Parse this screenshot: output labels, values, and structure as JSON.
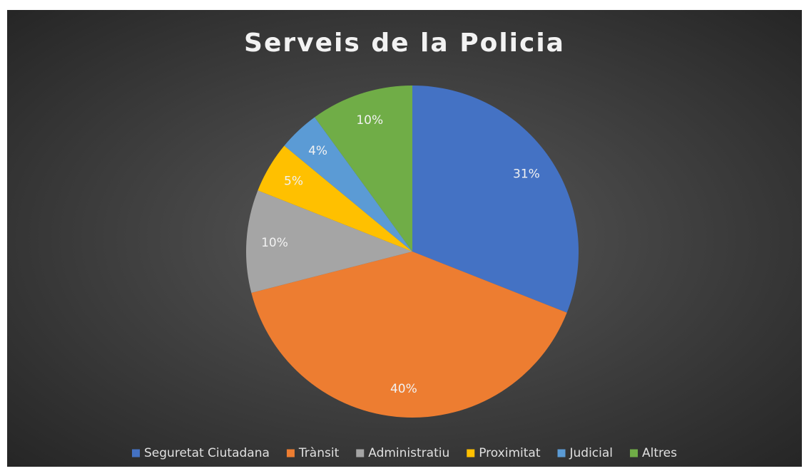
{
  "chart_data": {
    "type": "pie",
    "title": "Serveis de la Policia",
    "categories": [
      "Seguretat Ciutadana",
      "Trànsit",
      "Administratiu",
      "Proximitat",
      "Judicial",
      "Altres"
    ],
    "values": [
      31,
      40,
      10,
      5,
      4,
      10
    ],
    "value_labels": [
      "31%",
      "40%",
      "10%",
      "5%",
      "4%",
      "10%"
    ],
    "colors": [
      "#4472c4",
      "#ed7d31",
      "#a5a5a5",
      "#ffc000",
      "#5b9bd5",
      "#70ad47"
    ],
    "legend": "bottom"
  }
}
